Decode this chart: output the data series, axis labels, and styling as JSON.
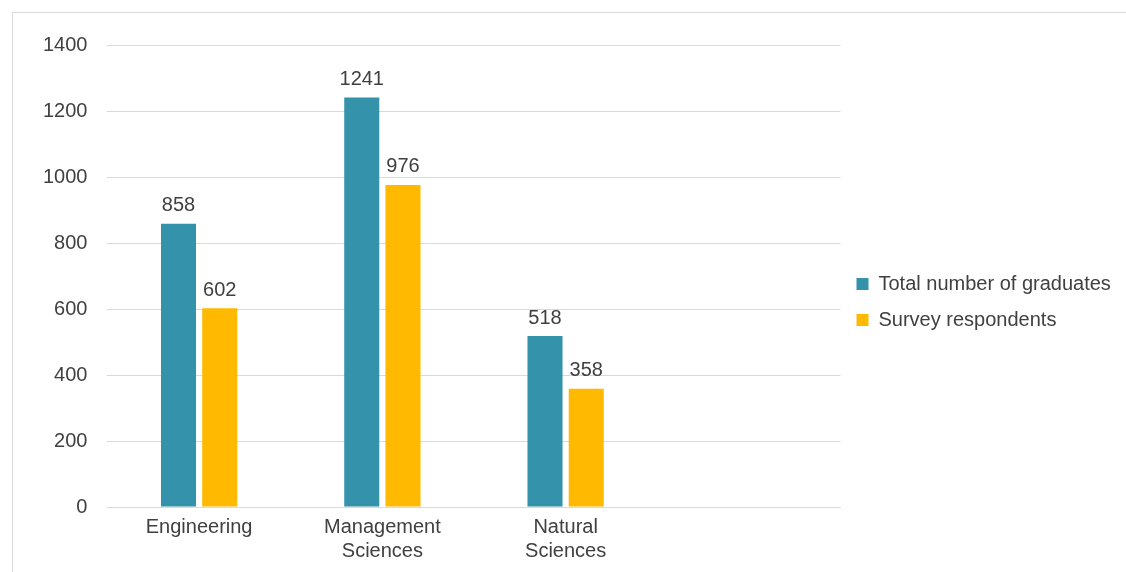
{
  "chart_data": {
    "type": "bar",
    "categories": [
      "Engineering",
      "Management Sciences",
      "Natural Sciences",
      null
    ],
    "series": [
      {
        "name": "Total number of graduates",
        "color": "#3592ab",
        "values": [
          858,
          1241,
          518,
          null
        ]
      },
      {
        "name": "Survey respondents",
        "color": "#ffb900",
        "values": [
          602,
          976,
          358,
          null
        ]
      }
    ],
    "ylim": [
      0,
      1400
    ],
    "yticks": [
      0,
      200,
      400,
      600,
      800,
      1000,
      1200,
      1400
    ],
    "grid": "y",
    "legend": "right",
    "data_labels": true
  }
}
